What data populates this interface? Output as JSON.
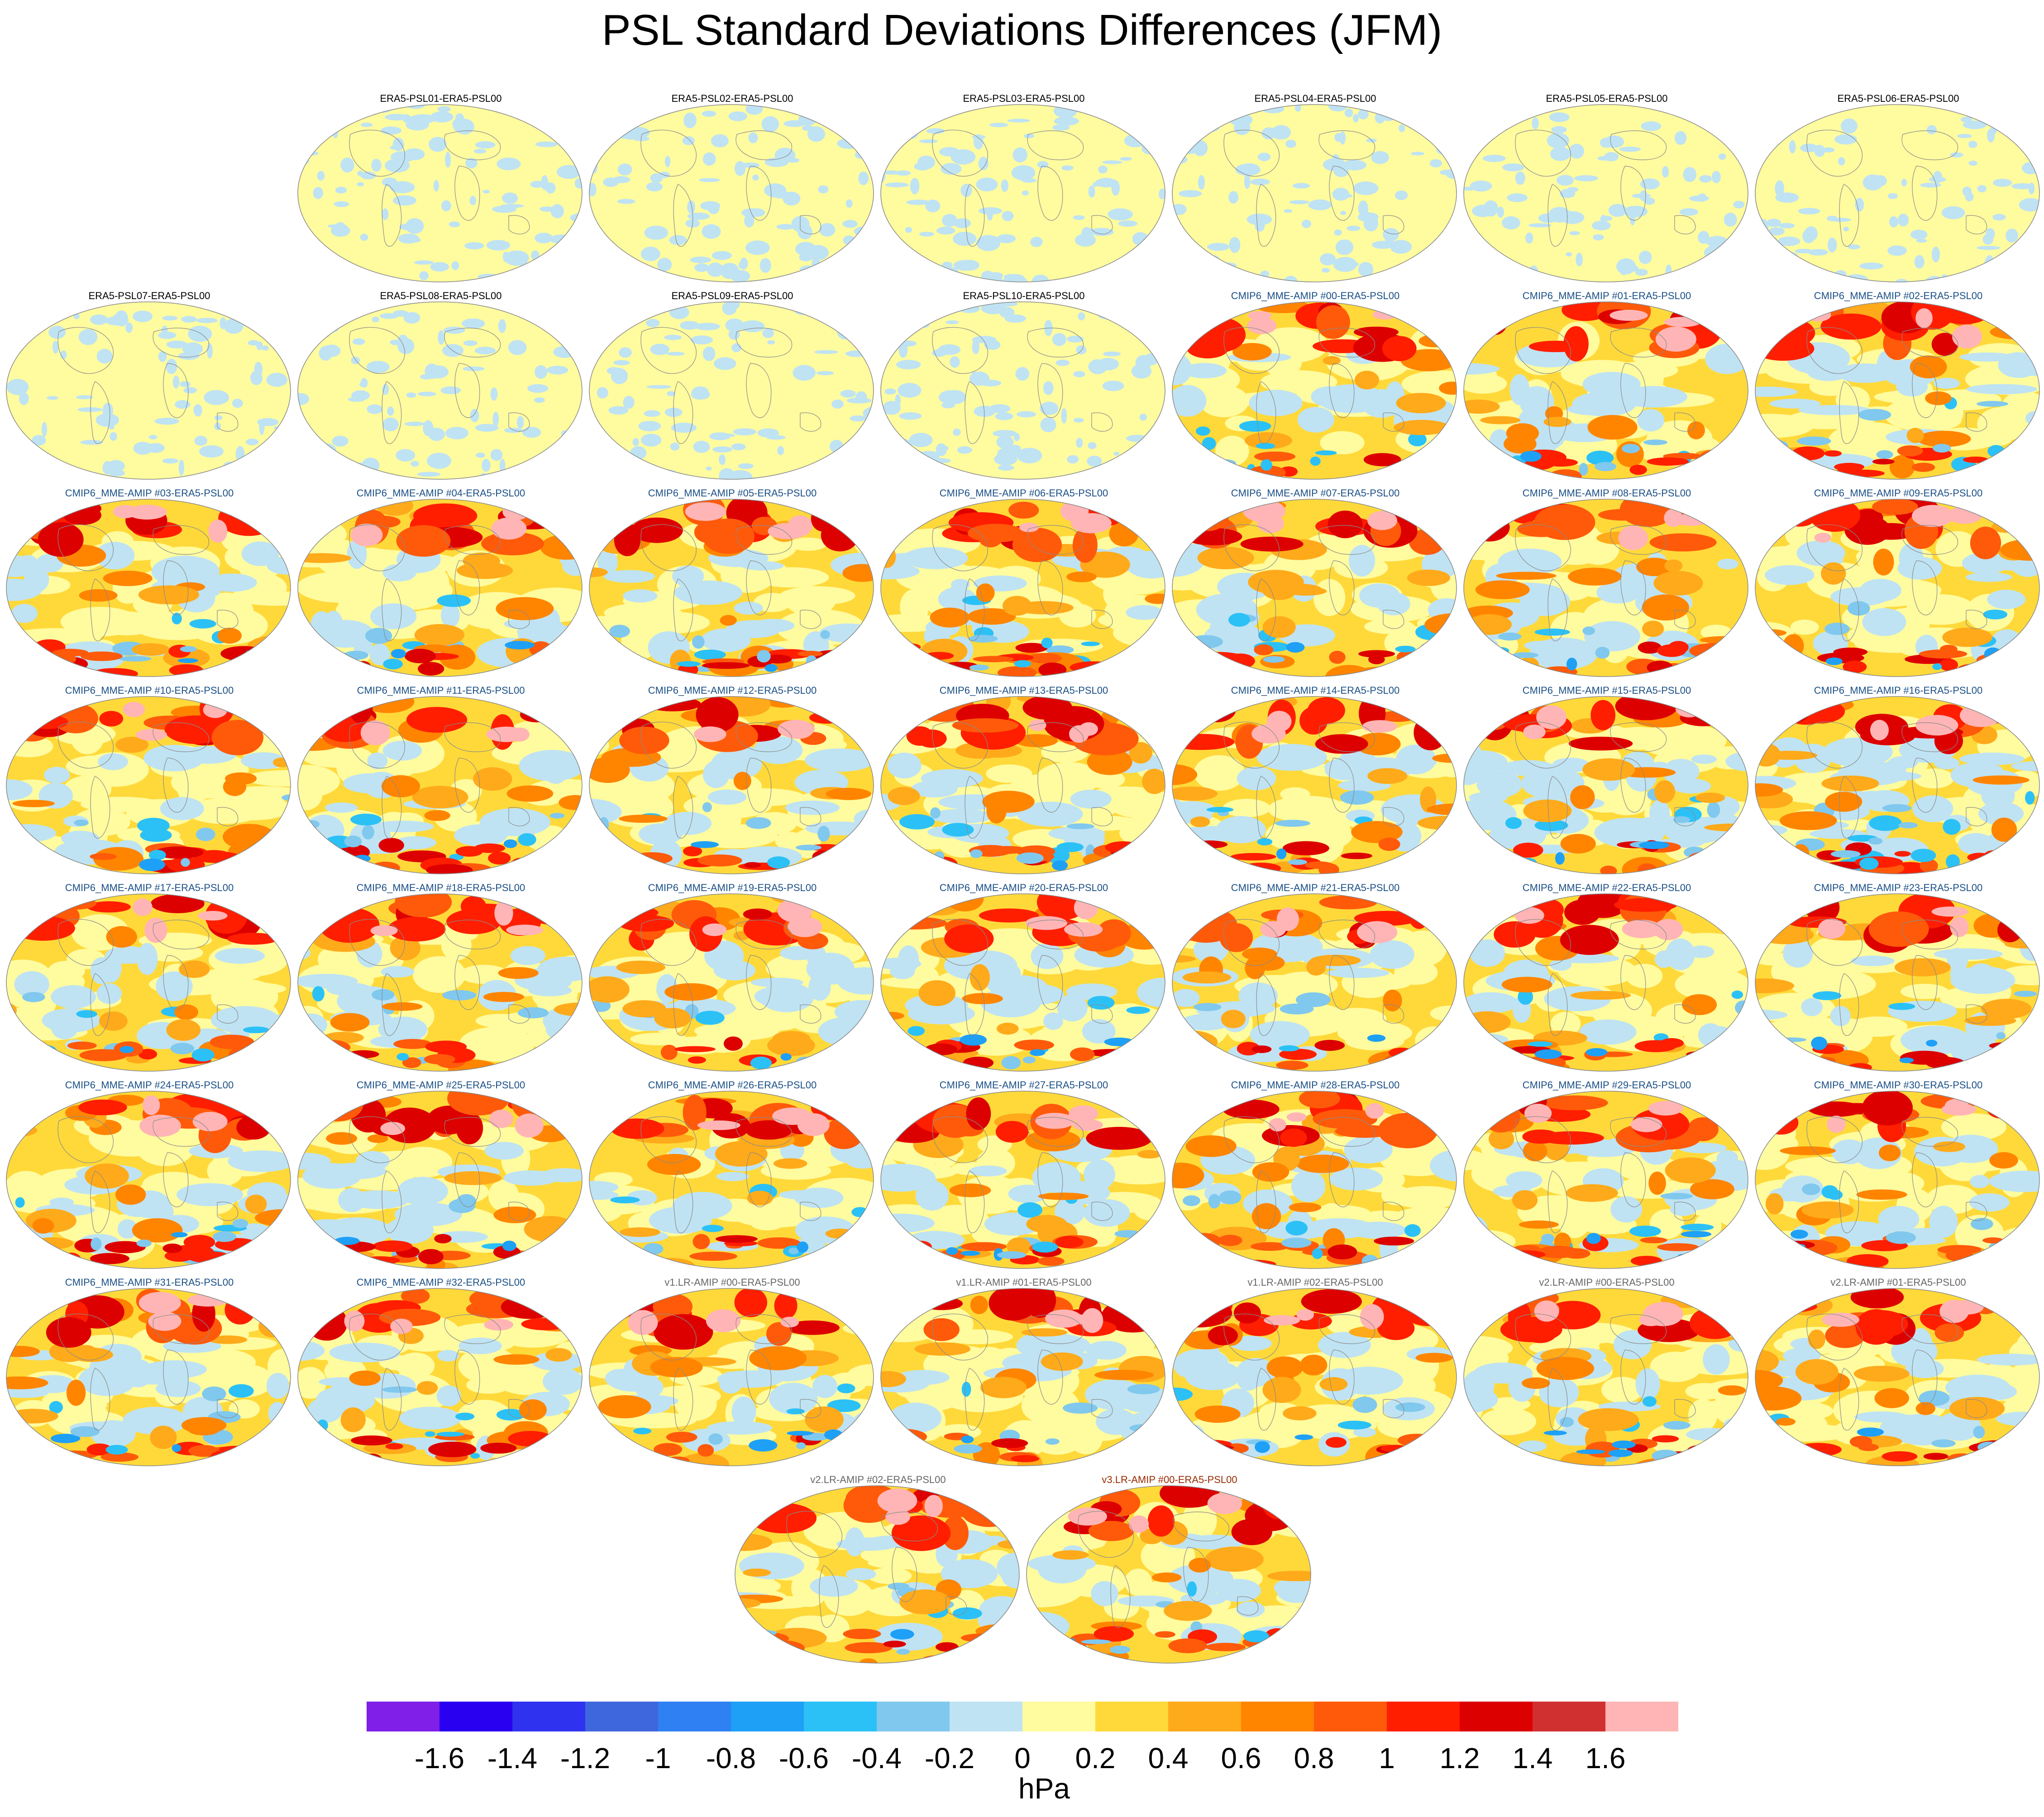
{
  "title": "PSL Standard Deviations Differences (JFM)",
  "panels": [
    {
      "label": "ERA5-PSL01-ERA5-PSL00",
      "group": "era5",
      "row": 0,
      "col": 1
    },
    {
      "label": "ERA5-PSL02-ERA5-PSL00",
      "group": "era5",
      "row": 0,
      "col": 2
    },
    {
      "label": "ERA5-PSL03-ERA5-PSL00",
      "group": "era5",
      "row": 0,
      "col": 3
    },
    {
      "label": "ERA5-PSL04-ERA5-PSL00",
      "group": "era5",
      "row": 0,
      "col": 4
    },
    {
      "label": "ERA5-PSL05-ERA5-PSL00",
      "group": "era5",
      "row": 0,
      "col": 5
    },
    {
      "label": "ERA5-PSL06-ERA5-PSL00",
      "group": "era5",
      "row": 0,
      "col": 6
    },
    {
      "label": "ERA5-PSL07-ERA5-PSL00",
      "group": "era5",
      "row": 1,
      "col": 0
    },
    {
      "label": "ERA5-PSL08-ERA5-PSL00",
      "group": "era5",
      "row": 1,
      "col": 1
    },
    {
      "label": "ERA5-PSL09-ERA5-PSL00",
      "group": "era5",
      "row": 1,
      "col": 2
    },
    {
      "label": "ERA5-PSL10-ERA5-PSL00",
      "group": "era5",
      "row": 1,
      "col": 3
    },
    {
      "label": "CMIP6_MME-AMIP  #00-ERA5-PSL00",
      "group": "cmip6",
      "row": 1,
      "col": 4
    },
    {
      "label": "CMIP6_MME-AMIP  #01-ERA5-PSL00",
      "group": "cmip6",
      "row": 1,
      "col": 5
    },
    {
      "label": "CMIP6_MME-AMIP  #02-ERA5-PSL00",
      "group": "cmip6",
      "row": 1,
      "col": 6
    },
    {
      "label": "CMIP6_MME-AMIP  #03-ERA5-PSL00",
      "group": "cmip6",
      "row": 2,
      "col": 0
    },
    {
      "label": "CMIP6_MME-AMIP  #04-ERA5-PSL00",
      "group": "cmip6",
      "row": 2,
      "col": 1
    },
    {
      "label": "CMIP6_MME-AMIP  #05-ERA5-PSL00",
      "group": "cmip6",
      "row": 2,
      "col": 2
    },
    {
      "label": "CMIP6_MME-AMIP  #06-ERA5-PSL00",
      "group": "cmip6",
      "row": 2,
      "col": 3
    },
    {
      "label": "CMIP6_MME-AMIP  #07-ERA5-PSL00",
      "group": "cmip6",
      "row": 2,
      "col": 4
    },
    {
      "label": "CMIP6_MME-AMIP  #08-ERA5-PSL00",
      "group": "cmip6",
      "row": 2,
      "col": 5
    },
    {
      "label": "CMIP6_MME-AMIP  #09-ERA5-PSL00",
      "group": "cmip6",
      "row": 2,
      "col": 6
    },
    {
      "label": "CMIP6_MME-AMIP  #10-ERA5-PSL00",
      "group": "cmip6",
      "row": 3,
      "col": 0
    },
    {
      "label": "CMIP6_MME-AMIP  #11-ERA5-PSL00",
      "group": "cmip6",
      "row": 3,
      "col": 1
    },
    {
      "label": "CMIP6_MME-AMIP  #12-ERA5-PSL00",
      "group": "cmip6",
      "row": 3,
      "col": 2
    },
    {
      "label": "CMIP6_MME-AMIP  #13-ERA5-PSL00",
      "group": "cmip6",
      "row": 3,
      "col": 3
    },
    {
      "label": "CMIP6_MME-AMIP  #14-ERA5-PSL00",
      "group": "cmip6",
      "row": 3,
      "col": 4
    },
    {
      "label": "CMIP6_MME-AMIP  #15-ERA5-PSL00",
      "group": "cmip6",
      "row": 3,
      "col": 5
    },
    {
      "label": "CMIP6_MME-AMIP  #16-ERA5-PSL00",
      "group": "cmip6",
      "row": 3,
      "col": 6
    },
    {
      "label": "CMIP6_MME-AMIP  #17-ERA5-PSL00",
      "group": "cmip6",
      "row": 4,
      "col": 0
    },
    {
      "label": "CMIP6_MME-AMIP  #18-ERA5-PSL00",
      "group": "cmip6",
      "row": 4,
      "col": 1
    },
    {
      "label": "CMIP6_MME-AMIP  #19-ERA5-PSL00",
      "group": "cmip6",
      "row": 4,
      "col": 2
    },
    {
      "label": "CMIP6_MME-AMIP  #20-ERA5-PSL00",
      "group": "cmip6",
      "row": 4,
      "col": 3
    },
    {
      "label": "CMIP6_MME-AMIP  #21-ERA5-PSL00",
      "group": "cmip6",
      "row": 4,
      "col": 4
    },
    {
      "label": "CMIP6_MME-AMIP  #22-ERA5-PSL00",
      "group": "cmip6",
      "row": 4,
      "col": 5
    },
    {
      "label": "CMIP6_MME-AMIP  #23-ERA5-PSL00",
      "group": "cmip6",
      "row": 4,
      "col": 6
    },
    {
      "label": "CMIP6_MME-AMIP  #24-ERA5-PSL00",
      "group": "cmip6",
      "row": 5,
      "col": 0
    },
    {
      "label": "CMIP6_MME-AMIP  #25-ERA5-PSL00",
      "group": "cmip6",
      "row": 5,
      "col": 1
    },
    {
      "label": "CMIP6_MME-AMIP  #26-ERA5-PSL00",
      "group": "cmip6",
      "row": 5,
      "col": 2
    },
    {
      "label": "CMIP6_MME-AMIP  #27-ERA5-PSL00",
      "group": "cmip6",
      "row": 5,
      "col": 3
    },
    {
      "label": "CMIP6_MME-AMIP  #28-ERA5-PSL00",
      "group": "cmip6",
      "row": 5,
      "col": 4
    },
    {
      "label": "CMIP6_MME-AMIP  #29-ERA5-PSL00",
      "group": "cmip6",
      "row": 5,
      "col": 5
    },
    {
      "label": "CMIP6_MME-AMIP  #30-ERA5-PSL00",
      "group": "cmip6",
      "row": 5,
      "col": 6
    },
    {
      "label": "CMIP6_MME-AMIP  #31-ERA5-PSL00",
      "group": "cmip6",
      "row": 6,
      "col": 0
    },
    {
      "label": "CMIP6_MME-AMIP  #32-ERA5-PSL00",
      "group": "cmip6",
      "row": 6,
      "col": 1
    },
    {
      "label": "v1.LR-AMIP  #00-ERA5-PSL00",
      "group": "v1",
      "row": 6,
      "col": 2
    },
    {
      "label": "v1.LR-AMIP  #01-ERA5-PSL00",
      "group": "v1",
      "row": 6,
      "col": 3
    },
    {
      "label": "v1.LR-AMIP  #02-ERA5-PSL00",
      "group": "v1",
      "row": 6,
      "col": 4
    },
    {
      "label": "v2.LR-AMIP  #00-ERA5-PSL00",
      "group": "v2",
      "row": 6,
      "col": 5
    },
    {
      "label": "v2.LR-AMIP  #01-ERA5-PSL00",
      "group": "v2",
      "row": 6,
      "col": 6
    },
    {
      "label": "v2.LR-AMIP  #02-ERA5-PSL00",
      "group": "v2",
      "row": 7,
      "col": 2.5
    },
    {
      "label": "v3.LR-AMIP  #00-ERA5-PSL00",
      "group": "v3",
      "row": 7,
      "col": 3.5
    }
  ],
  "colorbar": {
    "units": "hPa",
    "colors": [
      "#7f1fe8",
      "#2a00f0",
      "#2f32ee",
      "#3e66dd",
      "#2f80f3",
      "#1ea0f7",
      "#2bc1f7",
      "#80c8ee",
      "#bfe3f3",
      "#fffb9f",
      "#ffd93a",
      "#ffaa1a",
      "#ff8500",
      "#ff5a0a",
      "#ff1e00",
      "#dd0000",
      "#d03030",
      "#ffb5b5"
    ],
    "labels": [
      "-1.6",
      "-1.4",
      "-1.2",
      "-1",
      "-0.8",
      "-0.6",
      "-0.4",
      "-0.2",
      "0",
      "0.2",
      "0.4",
      "0.6",
      "0.8",
      "1",
      "1.2",
      "1.4",
      "1.6"
    ]
  }
}
